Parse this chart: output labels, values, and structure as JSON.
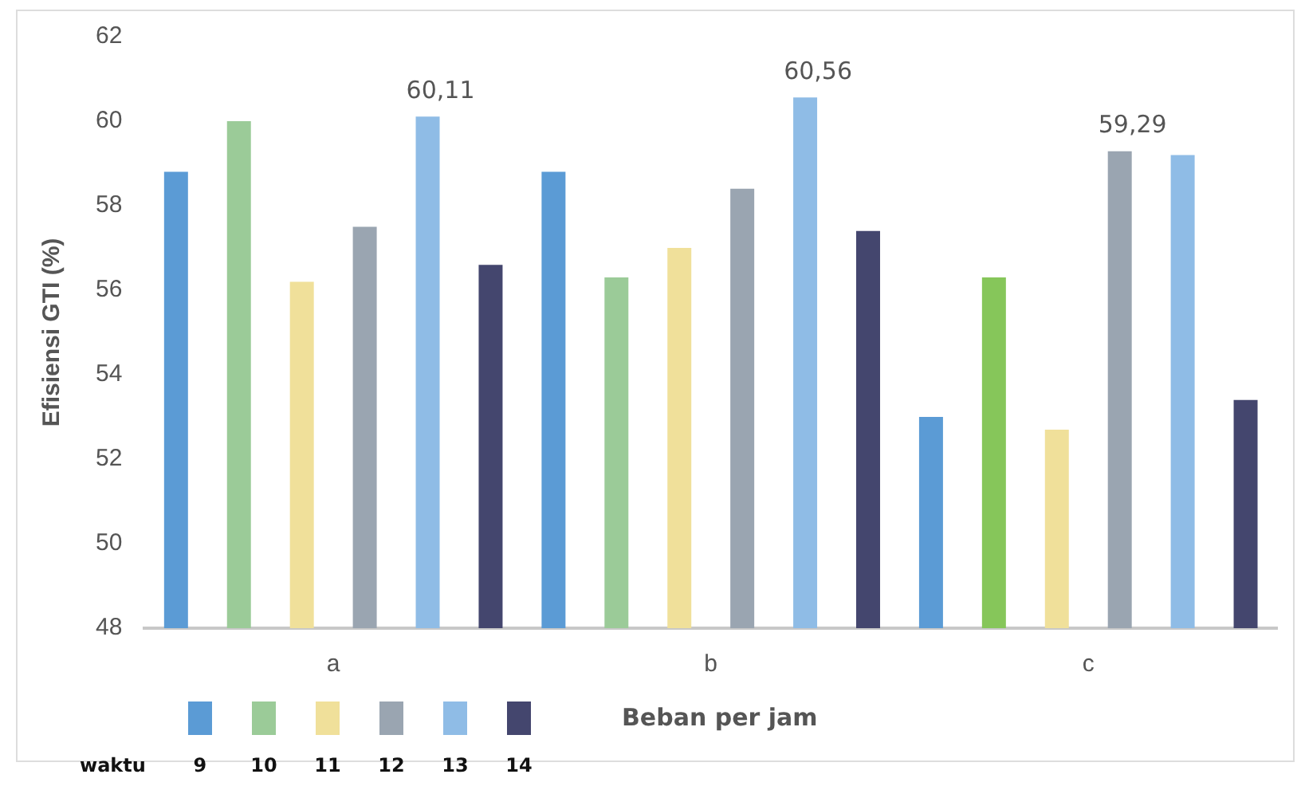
{
  "chart_data": {
    "type": "bar",
    "xlabel": "Beban per jam",
    "ylabel": "Efisiensi GTI (%)",
    "legend_title": "waktu",
    "legend": "bottom left",
    "grid": false,
    "categories": [
      "a",
      "b",
      "c"
    ],
    "ylim": [
      48,
      62
    ],
    "yticks": [
      48,
      50,
      52,
      54,
      56,
      58,
      60,
      62
    ],
    "series": [
      {
        "name": "9",
        "color": "#5b9bd5",
        "values": [
          58.8,
          58.8,
          53.0
        ]
      },
      {
        "name": "10",
        "color": "#9bcb98",
        "colors": [
          "#9bcb98",
          "#9bcb98",
          "#86c65a"
        ],
        "values": [
          60.0,
          56.3,
          56.3
        ]
      },
      {
        "name": "11",
        "color": "#f0e09a",
        "values": [
          56.2,
          57.0,
          52.7
        ]
      },
      {
        "name": "12",
        "color": "#9aa5b1",
        "values": [
          57.5,
          58.4,
          59.29
        ],
        "value_labels": [
          null,
          null,
          "59,29"
        ]
      },
      {
        "name": "13",
        "color": "#8fbce6",
        "values": [
          60.11,
          60.56,
          59.2
        ],
        "value_labels": [
          "60,11",
          "60,56",
          null
        ]
      },
      {
        "name": "14",
        "color": "#44466e",
        "values": [
          56.6,
          57.4,
          53.4
        ]
      }
    ]
  }
}
